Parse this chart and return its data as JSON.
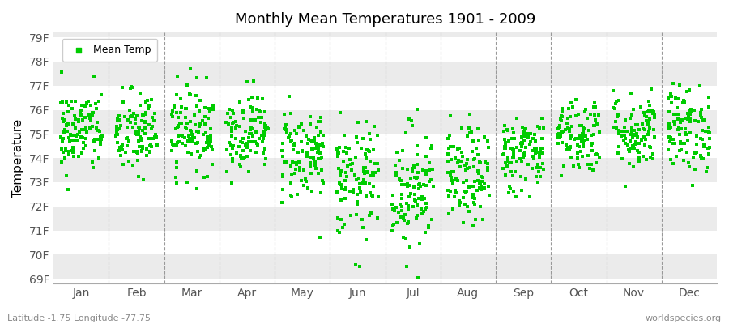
{
  "title": "Monthly Mean Temperatures 1901 - 2009",
  "ylabel": "Temperature",
  "xlabel_labels": [
    "Jan",
    "Feb",
    "Mar",
    "Apr",
    "May",
    "Jun",
    "Jul",
    "Aug",
    "Sep",
    "Oct",
    "Nov",
    "Dec"
  ],
  "ytick_labels": [
    "69F",
    "70F",
    "71F",
    "72F",
    "73F",
    "74F",
    "75F",
    "76F",
    "77F",
    "78F",
    "79F"
  ],
  "ytick_values": [
    69,
    70,
    71,
    72,
    73,
    74,
    75,
    76,
    77,
    78,
    79
  ],
  "ylim": [
    68.8,
    79.2
  ],
  "fig_bg_color": "#ffffff",
  "plot_bg_color": "#ffffff",
  "band_color_light": "#ebebeb",
  "band_color_dark": "#ffffff",
  "dot_color": "#00cc00",
  "dot_size": 6,
  "legend_label": "Mean Temp",
  "footer_left": "Latitude -1.75 Longitude -77.75",
  "footer_right": "worldspecies.org",
  "n_years": 109,
  "monthly_means": [
    75.1,
    75.0,
    75.2,
    75.1,
    74.2,
    73.0,
    72.8,
    73.2,
    74.2,
    75.0,
    75.1,
    75.2
  ],
  "monthly_stds": [
    0.9,
    0.9,
    0.9,
    0.8,
    1.0,
    1.2,
    1.3,
    1.0,
    0.8,
    0.8,
    0.8,
    0.9
  ]
}
